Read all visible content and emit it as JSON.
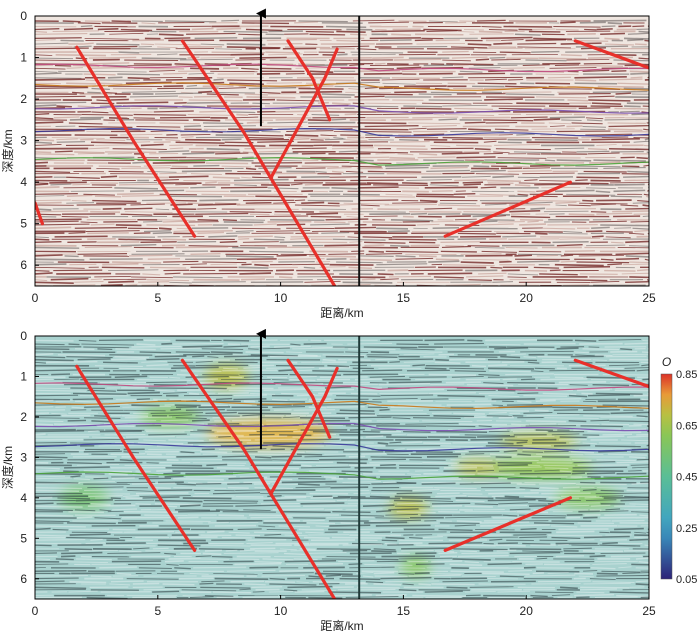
{
  "chart_data": [
    {
      "type": "heatmap",
      "panel": "top",
      "xlabel": "距离/km",
      "ylabel": "深度/km",
      "xlim": [
        0,
        25
      ],
      "ylim": [
        6.5,
        0
      ],
      "xticks": [
        0,
        5,
        10,
        15,
        20,
        25
      ],
      "yticks": [
        0,
        1,
        2,
        3,
        4,
        5,
        6
      ],
      "well_x": 13.2,
      "arrow": {
        "x": 9.2,
        "y_top": -0.3,
        "y_bottom": 2.65
      },
      "faults": [
        {
          "points": [
            [
              1.7,
              0.75
            ],
            [
              4.0,
              3.0
            ],
            [
              6.5,
              5.3
            ]
          ]
        },
        {
          "points": [
            [
              6.0,
              0.6
            ],
            [
              8.5,
              2.8
            ],
            [
              12.2,
              6.5
            ]
          ]
        },
        {
          "points": [
            [
              10.3,
              0.6
            ],
            [
              11.3,
              1.5
            ],
            [
              12.0,
              2.5
            ]
          ]
        },
        {
          "points": [
            [
              12.3,
              0.8
            ],
            [
              11.8,
              1.5
            ],
            [
              9.6,
              3.9
            ]
          ]
        },
        {
          "points": [
            [
              22.0,
              0.6
            ],
            [
              25.0,
              1.25
            ]
          ]
        },
        {
          "points": [
            [
              16.7,
              5.3
            ],
            [
              21.8,
              4.0
            ]
          ]
        },
        {
          "points": [
            [
              0.0,
              4.5
            ],
            [
              0.3,
              5.0
            ]
          ]
        }
      ],
      "horizons": [
        {
          "color": "#c8781a",
          "depth": 1.65
        },
        {
          "color": "#7a4fb0",
          "depth": 2.2
        },
        {
          "color": "#3a3a9a",
          "depth": 2.75
        },
        {
          "color": "#4aa33a",
          "depth": 3.45
        },
        {
          "color": "#c04a80",
          "depth": 1.2
        }
      ]
    },
    {
      "type": "heatmap",
      "panel": "bottom",
      "xlabel": "距离/km",
      "ylabel": "深度/km",
      "xlim": [
        0,
        25
      ],
      "ylim": [
        6.5,
        0
      ],
      "xticks": [
        0,
        5,
        10,
        15,
        20,
        25
      ],
      "yticks": [
        0,
        1,
        2,
        3,
        4,
        5,
        6
      ],
      "well_x": 13.2,
      "arrow": {
        "x": 9.2,
        "y_top": -0.3,
        "y_bottom": 2.8
      },
      "colorbar": {
        "title": "O",
        "min": 0.05,
        "max": 0.85,
        "ticks": [
          "0.85",
          "0.65",
          "0.45",
          "0.25",
          "0.05"
        ]
      },
      "faults": [
        {
          "points": [
            [
              1.7,
              0.75
            ],
            [
              4.0,
              3.0
            ],
            [
              6.5,
              5.3
            ]
          ]
        },
        {
          "points": [
            [
              6.0,
              0.6
            ],
            [
              8.5,
              2.8
            ],
            [
              12.2,
              6.5
            ]
          ]
        },
        {
          "points": [
            [
              10.3,
              0.6
            ],
            [
              11.3,
              1.5
            ],
            [
              12.0,
              2.5
            ]
          ]
        },
        {
          "points": [
            [
              12.3,
              0.8
            ],
            [
              11.8,
              1.5
            ],
            [
              9.6,
              3.9
            ]
          ]
        },
        {
          "points": [
            [
              22.0,
              0.6
            ],
            [
              25.0,
              1.25
            ]
          ]
        },
        {
          "points": [
            [
              16.7,
              5.3
            ],
            [
              21.8,
              4.0
            ]
          ]
        }
      ],
      "anomalies": [
        {
          "x": 7.8,
          "y": 1.0,
          "rx": 0.9,
          "ry": 0.3,
          "level": 0.7
        },
        {
          "x": 9.5,
          "y": 2.4,
          "rx": 2.5,
          "ry": 0.35,
          "level": 0.75
        },
        {
          "x": 5.5,
          "y": 2.0,
          "rx": 1.2,
          "ry": 0.25,
          "level": 0.6
        },
        {
          "x": 20.5,
          "y": 2.6,
          "rx": 1.6,
          "ry": 0.2,
          "level": 0.7
        },
        {
          "x": 20.5,
          "y": 3.25,
          "rx": 2.2,
          "ry": 0.25,
          "level": 0.65
        },
        {
          "x": 18.0,
          "y": 3.25,
          "rx": 0.9,
          "ry": 0.2,
          "level": 0.7
        },
        {
          "x": 15.2,
          "y": 4.25,
          "rx": 0.8,
          "ry": 0.25,
          "level": 0.7
        },
        {
          "x": 22.5,
          "y": 4.0,
          "rx": 1.3,
          "ry": 0.25,
          "level": 0.6
        },
        {
          "x": 2.0,
          "y": 4.0,
          "rx": 1.0,
          "ry": 0.3,
          "level": 0.55
        },
        {
          "x": 15.5,
          "y": 5.7,
          "rx": 0.6,
          "ry": 0.25,
          "level": 0.6
        }
      ],
      "horizons": [
        {
          "color": "#c8781a",
          "depth": 1.65
        },
        {
          "color": "#7a4fb0",
          "depth": 2.2
        },
        {
          "color": "#3a3a9a",
          "depth": 2.7
        },
        {
          "color": "#4aa33a",
          "depth": 3.4
        },
        {
          "color": "#c04a80",
          "depth": 1.2
        }
      ]
    }
  ]
}
